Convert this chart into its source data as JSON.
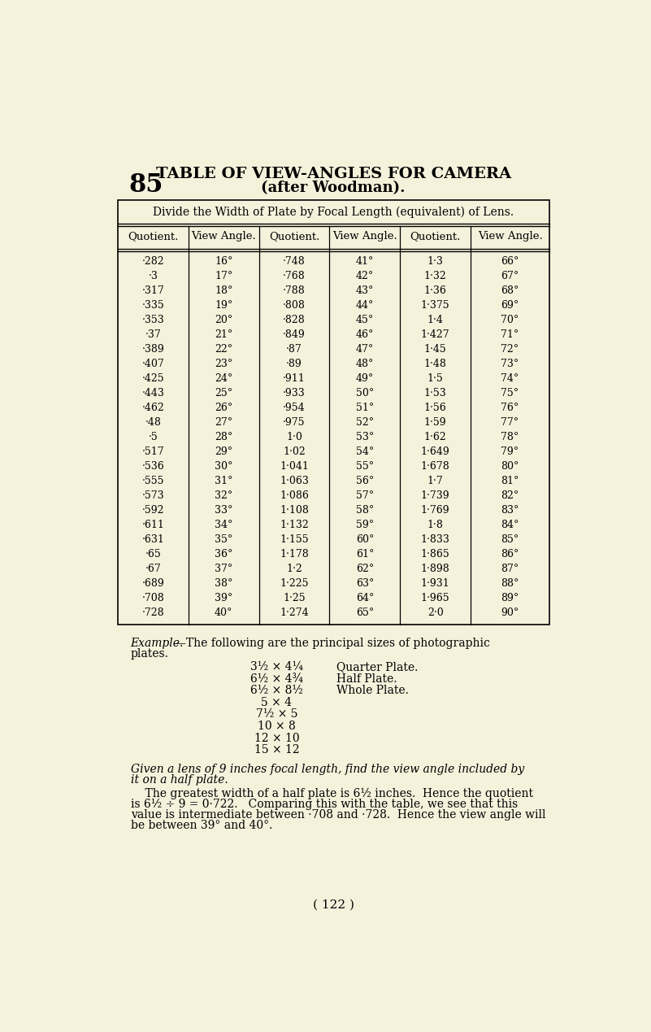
{
  "bg_color": "#f5f2dc",
  "page_number": "( 122 )",
  "section_number": "85",
  "title_line1": "TABLE OF VIEW-ANGLES FOR CAMERA",
  "title_line2": "(after Woodman).",
  "table_header": "Divide the Width of Plate by Focal Length (equivalent) of Lens.",
  "col_headers": [
    "Quotient.",
    "View Angle.",
    "Quotient.",
    "View Angle.",
    "Quotient.",
    "View Angle."
  ],
  "table_data": [
    [
      "·282",
      "16°",
      "·748",
      "41°",
      "1·3",
      "66°"
    ],
    [
      "·3",
      "17°",
      "·768",
      "42°",
      "1·32",
      "67°"
    ],
    [
      "·317",
      "18°",
      "·788",
      "43°",
      "1·36",
      "68°"
    ],
    [
      "·335",
      "19°",
      "·808",
      "44°",
      "1·375",
      "69°"
    ],
    [
      "·353",
      "20°",
      "·828",
      "45°",
      "1·4",
      "70°"
    ],
    [
      "·37",
      "21°",
      "·849",
      "46°",
      "1·427",
      "71°"
    ],
    [
      "·389",
      "22°",
      "·87",
      "47°",
      "1·45",
      "72°"
    ],
    [
      "·407",
      "23°",
      "·89",
      "48°",
      "1·48",
      "73°"
    ],
    [
      "·425",
      "24°",
      "·911",
      "49°",
      "1·5",
      "74°"
    ],
    [
      "·443",
      "25°",
      "·933",
      "50°",
      "1·53",
      "75°"
    ],
    [
      "·462",
      "26°",
      "·954",
      "51°",
      "1·56",
      "76°"
    ],
    [
      "·48",
      "27°",
      "·975",
      "52°",
      "1·59",
      "77°"
    ],
    [
      "·5",
      "28°",
      "1·0",
      "53°",
      "1·62",
      "78°"
    ],
    [
      "·517",
      "29°",
      "1·02",
      "54°",
      "1·649",
      "79°"
    ],
    [
      "·536",
      "30°",
      "1·041",
      "55°",
      "1·678",
      "80°"
    ],
    [
      "·555",
      "31°",
      "1·063",
      "56°",
      "1·7",
      "81°"
    ],
    [
      "·573",
      "32°",
      "1·086",
      "57°",
      "1·739",
      "82°"
    ],
    [
      "·592",
      "33°",
      "1·108",
      "58°",
      "1·769",
      "83°"
    ],
    [
      "·611",
      "34°",
      "1·132",
      "59°",
      "1·8",
      "84°"
    ],
    [
      "·631",
      "35°",
      "1·155",
      "60°",
      "1·833",
      "85°"
    ],
    [
      "·65",
      "36°",
      "1·178",
      "61°",
      "1·865",
      "86°"
    ],
    [
      "·67",
      "37°",
      "1·2",
      "62°",
      "1·898",
      "87°"
    ],
    [
      "·689",
      "38°",
      "1·225",
      "63°",
      "1·931",
      "88°"
    ],
    [
      "·708",
      "39°",
      "1·25",
      "64°",
      "1·965",
      "89°"
    ],
    [
      "·728",
      "40°",
      "1·274",
      "65°",
      "2·0",
      "90°"
    ]
  ],
  "plate_sizes": [
    [
      "3½ × 4¼",
      "Quarter Plate."
    ],
    [
      "6½ × 4¾",
      "Half Plate."
    ],
    [
      "6½ × 8½",
      "Whole Plate."
    ],
    [
      "5 × 4",
      ""
    ],
    [
      "7½ × 5",
      ""
    ],
    [
      "10 × 8",
      ""
    ],
    [
      "12 × 10",
      ""
    ],
    [
      "15 × 12",
      ""
    ]
  ],
  "italic_line1": "Given a lens of 9 inches focal length, find the view angle included by",
  "italic_line2": "it on a half plate.",
  "body_text": [
    "    The greatest width of a half plate is 6½ inches.  Hence the quotient",
    "is 6½ ÷ 9 = 0·722.   Comparing this with the table, we see that this",
    "value is intermediate between ·708 and ·728.  Hence the view angle will",
    "be between 39° and 40°."
  ]
}
